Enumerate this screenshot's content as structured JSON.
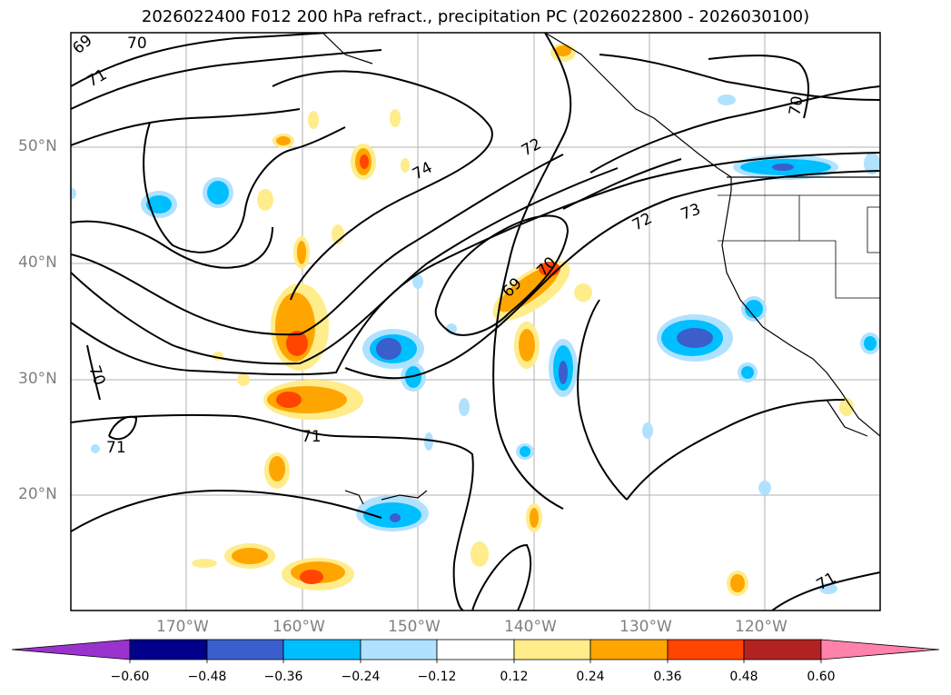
{
  "title": "2026022400 F012 200 hPa refract., precipitation PC (2026022800 - 2026030100)",
  "lat_labels": [
    "50°N",
    "40°N",
    "30°N",
    "20°N"
  ],
  "lon_labels": [
    "170°W",
    "160°W",
    "150°W",
    "140°W",
    "130°W",
    "120°W"
  ],
  "contour_labels": [
    "69",
    "70",
    "71",
    "74",
    "72",
    "72",
    "73",
    "69",
    "70",
    "70",
    "70",
    "71",
    "71",
    "71"
  ],
  "colorbar": {
    "ticks": [
      "−0.60",
      "−0.48",
      "−0.36",
      "−0.24",
      "−0.12",
      "0.12",
      "0.24",
      "0.36",
      "0.48",
      "0.60"
    ],
    "colors": [
      "#9a32cd",
      "#00008b",
      "#3a5fcd",
      "#00bfff",
      "#b0e2ff",
      "#ffffff",
      "#ffec8b",
      "#ffa500",
      "#ff4500",
      "#b22222",
      "#ff82ab"
    ]
  },
  "map_colors": {
    "neg_light": "#b0e2ff",
    "neg_mid": "#00bfff",
    "neg_strong": "#3a5fcd",
    "pos_light": "#ffec8b",
    "pos_mid": "#ffa500",
    "pos_strong": "#ff4500",
    "grid": "#b0b0b0"
  }
}
